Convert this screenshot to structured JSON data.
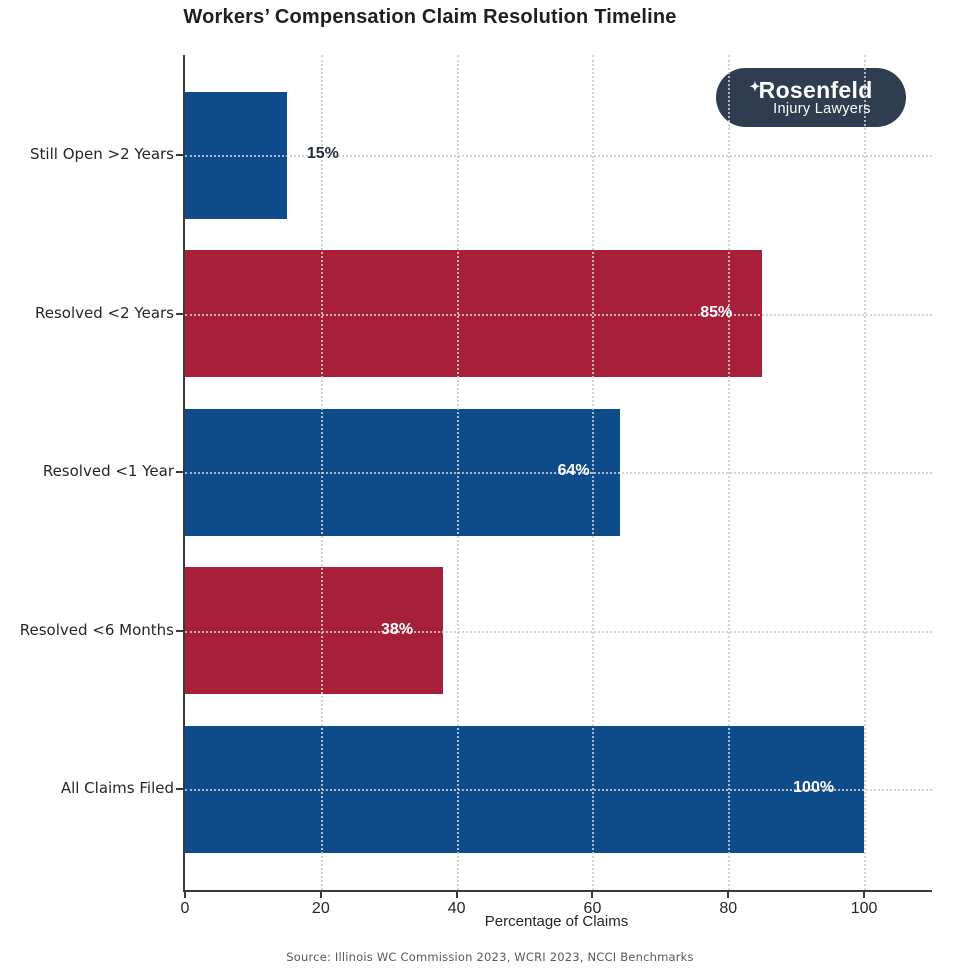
{
  "logo": {
    "star_icon": "✦",
    "name": "Rosenfeld",
    "tagline": "Injury Lawyers",
    "bg_color": "#2e3d4f",
    "text_color": "#ffffff"
  },
  "source": "Source: Illinois WC Commission 2023, WCRI 2023, NCCI Benchmarks",
  "colors": {
    "bar_blue": "#0e4c8c",
    "bar_crimson": "#a81f3a",
    "inside_label": "#ffffff",
    "outside_label": "#25303e",
    "grid": "#cdcdcd",
    "axis": "#3a3a3a",
    "text": "#262626"
  },
  "chart_data": {
    "type": "bar",
    "orientation": "horizontal",
    "title": "Workers’ Compensation Claim Resolution Timeline",
    "categories": [
      "Still Open >2 Years",
      "Resolved <2 Years",
      "Resolved <1 Year",
      "Resolved <6 Months",
      "All Claims Filed"
    ],
    "values": [
      15,
      85,
      64,
      38,
      100
    ],
    "value_labels": [
      "15%",
      "85%",
      "64%",
      "38%",
      "100%"
    ],
    "bar_colors": [
      "#0e4c8c",
      "#a81f3a",
      "#0e4c8c",
      "#a81f3a",
      "#0e4c8c"
    ],
    "label_inside": [
      false,
      true,
      true,
      true,
      true
    ],
    "xlabel": "Percentage of Claims",
    "x_ticks": [
      0,
      20,
      40,
      60,
      80,
      100
    ],
    "xlim": [
      0,
      110
    ],
    "grid": "dotted",
    "legend": "none"
  }
}
